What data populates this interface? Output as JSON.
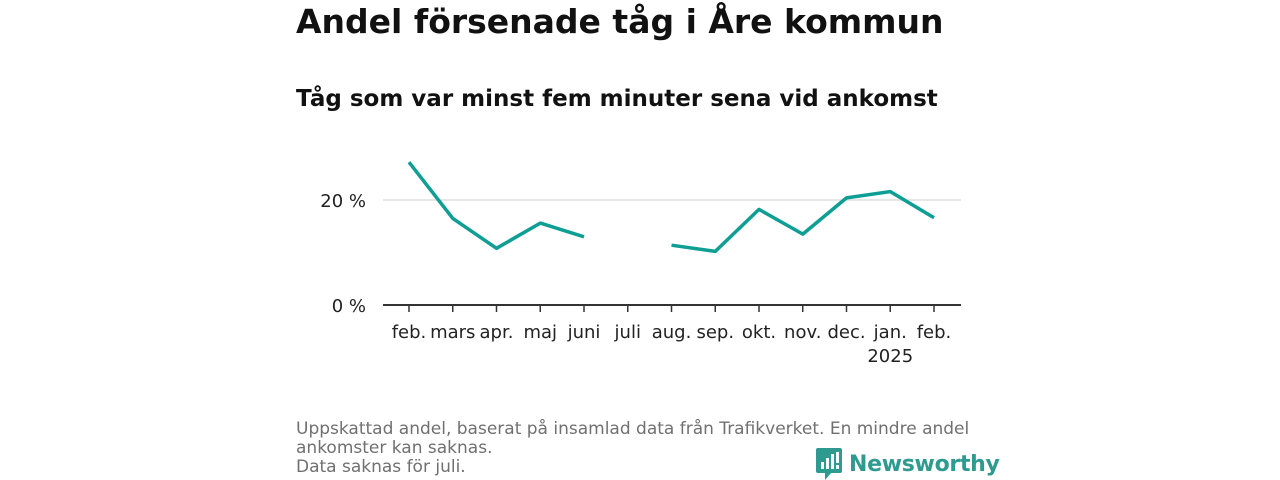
{
  "title": "Andel försenade tåg i Åre kommun",
  "subtitle": "Tåg som var minst fem minuter sena vid ankomst",
  "chart_data": {
    "type": "line",
    "categories": [
      "feb.",
      "mars",
      "apr.",
      "maj",
      "juni",
      "juli",
      "aug.",
      "sep.",
      "okt.",
      "nov.",
      "dec.",
      "jan.",
      "feb."
    ],
    "year_label": {
      "category_index": 11,
      "text": "2025"
    },
    "series": [
      {
        "values": [
          27.2,
          16.5,
          10.8,
          15.6,
          13.0,
          null,
          11.4,
          10.2,
          18.2,
          13.5,
          20.4,
          21.6,
          16.6
        ]
      }
    ],
    "ylim": [
      0,
      30
    ],
    "y_ticks": [
      {
        "value": 0,
        "label": "0 %"
      },
      {
        "value": 20,
        "label": "20 %"
      }
    ],
    "gridlines": [
      20
    ],
    "color": "#0e9e94",
    "xlabel": "",
    "ylabel": ""
  },
  "footer": {
    "lines": [
      "Uppskattad andel, baserat på insamlad data från Trafikverket. En mindre andel",
      "ankomster kan saknas.",
      "Data saknas för juli."
    ]
  },
  "brand": {
    "name": "Newsworthy",
    "color": "#2f9a90",
    "icon": "newsworthy-logo-icon"
  }
}
